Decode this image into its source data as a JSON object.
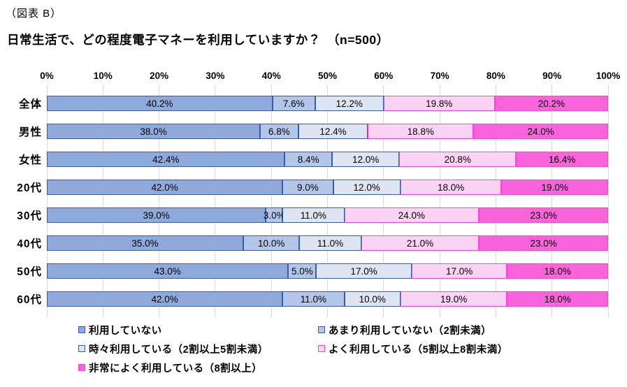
{
  "page": {
    "tag": "（図表 B）",
    "title": "日常生活で、どの程度電子マネーを利用していますか？　（n=500）"
  },
  "chart_data": {
    "type": "bar",
    "subtype": "horizontal-stacked-100",
    "title": "日常生活で、どの程度電子マネーを利用していますか？　（n=500）",
    "sample_note": "n=500",
    "categories": [
      "全体",
      "男性",
      "女性",
      "20代",
      "30代",
      "40代",
      "50代",
      "60代"
    ],
    "series": [
      {
        "name": "利用していない",
        "fill": "#8EA9DC",
        "border": "#3A5BA9",
        "values": [
          40.2,
          38.0,
          42.4,
          42.0,
          39.0,
          35.0,
          43.0,
          42.0
        ]
      },
      {
        "name": "あまり利用していない（2割未満）",
        "fill": "#B3C6E9",
        "border": "#3A5BA9",
        "values": [
          7.6,
          6.8,
          8.4,
          9.0,
          3.0,
          10.0,
          5.0,
          11.0
        ]
      },
      {
        "name": "時々利用している（2割以上5割未満）",
        "fill": "#DCE5F4",
        "border": "#3A5BA9",
        "values": [
          12.2,
          12.4,
          12.0,
          12.0,
          11.0,
          11.0,
          17.0,
          10.0
        ]
      },
      {
        "name": "よく利用している（5割以上8割未満）",
        "fill": "#FCD2F5",
        "border": "#FF3FD6",
        "values": [
          19.8,
          18.8,
          20.8,
          18.0,
          24.0,
          21.0,
          17.0,
          19.0
        ]
      },
      {
        "name": "非常によく利用している（8割以上）",
        "fill": "#FB63DD",
        "border": "#FF3FD6",
        "values": [
          20.2,
          24.0,
          16.4,
          19.0,
          23.0,
          23.0,
          18.0,
          18.0
        ]
      }
    ],
    "x_axis": {
      "min": 0,
      "max": 100,
      "tick_labels": [
        "0%",
        "10%",
        "20%",
        "30%",
        "40%",
        "50%",
        "60%",
        "70%",
        "80%",
        "90%",
        "100%"
      ]
    },
    "value_label_suffix": "%",
    "value_label_decimals": 1,
    "grid": true,
    "gridline_color": "#d9d9d9",
    "legend_position": "bottom",
    "legend_columns": 2
  }
}
